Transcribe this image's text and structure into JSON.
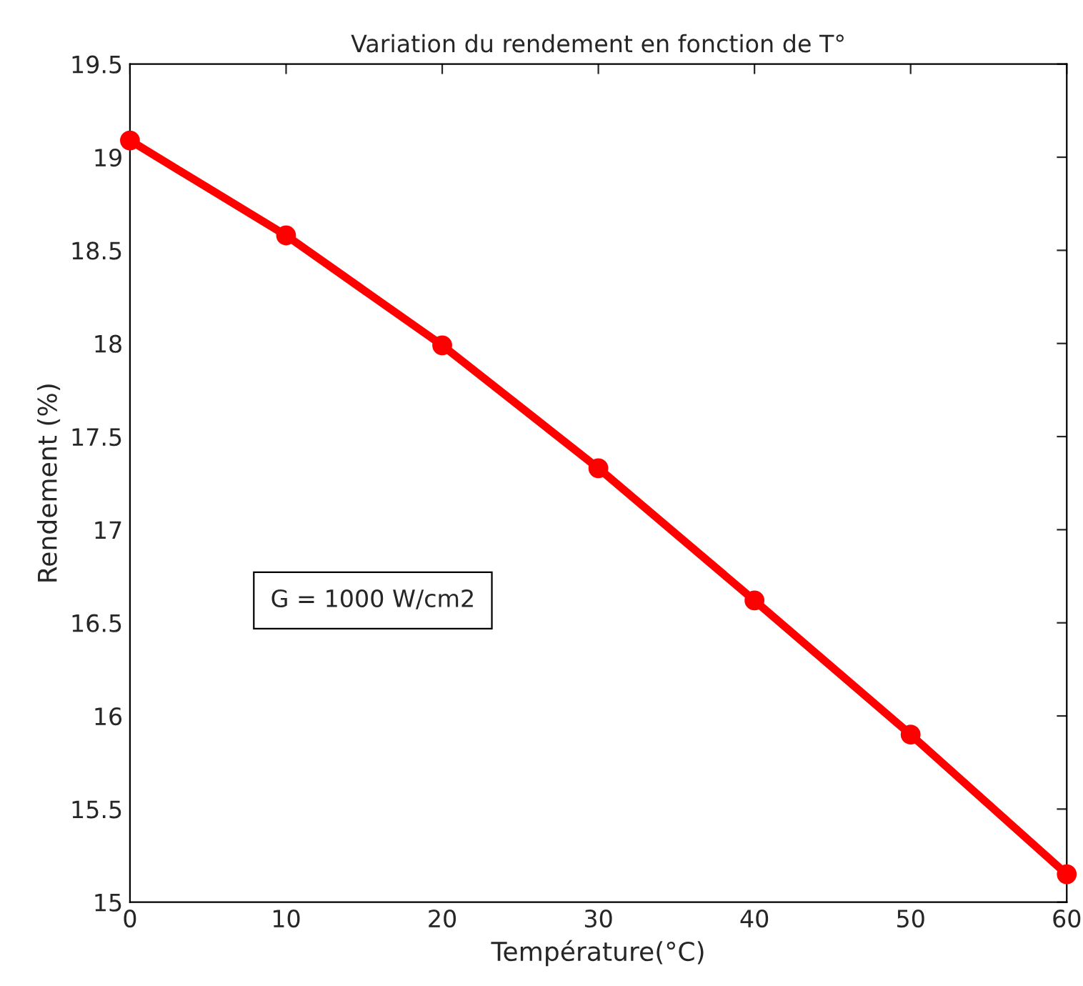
{
  "chart_data": {
    "type": "line",
    "title": "Variation du rendement en fonction de T°",
    "xlabel": "Température(°C)",
    "ylabel": "Rendement (%)",
    "x": [
      0,
      10,
      20,
      30,
      40,
      50,
      60
    ],
    "series": [
      {
        "color": "#ff0000",
        "values": [
          19.09,
          18.58,
          17.99,
          17.33,
          16.62,
          15.9,
          15.15
        ]
      }
    ],
    "xlim": [
      0,
      60
    ],
    "xticks": [
      0,
      10,
      20,
      30,
      40,
      50,
      60
    ],
    "ylim": [
      15,
      19.5
    ],
    "yticks": [
      15,
      15.5,
      16,
      16.5,
      17,
      17.5,
      18,
      18.5,
      19,
      19.5
    ],
    "marker": "circle",
    "line_style": "solid",
    "grid": false,
    "annotations": [
      "G = 1000 W/cm2"
    ]
  }
}
